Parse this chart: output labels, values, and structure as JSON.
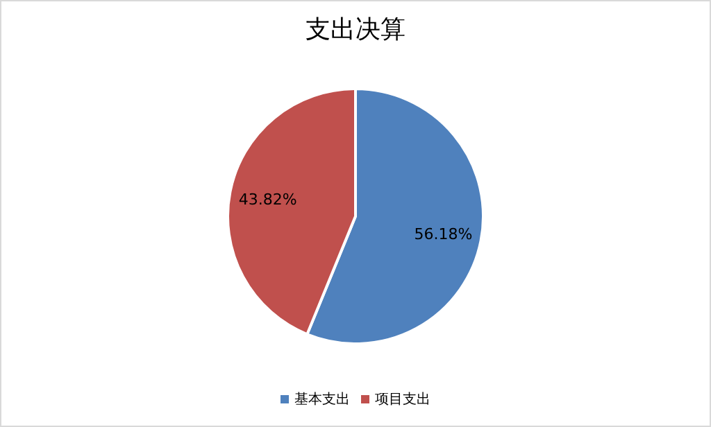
{
  "chart_data": {
    "type": "pie",
    "title": "支出决算",
    "categories": [
      "基本支出",
      "项目支出"
    ],
    "values": [
      56.18,
      43.82
    ],
    "colors": [
      "#4f81bd",
      "#c0504d"
    ],
    "value_labels": [
      "56.18%",
      "43.82%"
    ],
    "legend": "bottom"
  }
}
